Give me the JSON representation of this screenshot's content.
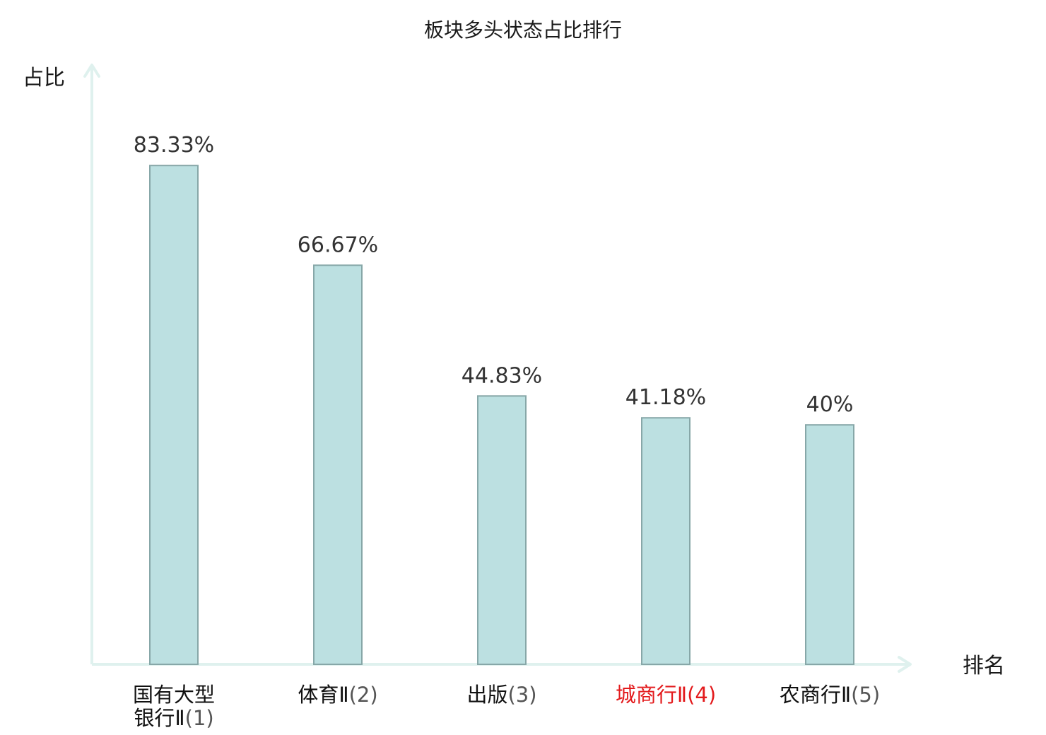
{
  "chart_data": {
    "type": "bar",
    "title": "板块多头状态占比排行",
    "xlabel": "排名",
    "ylabel": "占比",
    "categories": [
      {
        "name": "国有大型银行Ⅱ",
        "name_lines": [
          "国有大型",
          "银行Ⅱ"
        ],
        "rank": "(1)",
        "highlight": false
      },
      {
        "name": "体育Ⅱ",
        "name_lines": [
          "体育Ⅱ"
        ],
        "rank": "(2)",
        "highlight": false
      },
      {
        "name": "出版",
        "name_lines": [
          "出版"
        ],
        "rank": "(3)",
        "highlight": false
      },
      {
        "name": "城商行Ⅱ",
        "name_lines": [
          "城商行Ⅱ"
        ],
        "rank": "(4)",
        "highlight": true
      },
      {
        "name": "农商行Ⅱ",
        "name_lines": [
          "农商行Ⅱ"
        ],
        "rank": "(5)",
        "highlight": false
      }
    ],
    "values": [
      83.33,
      66.67,
      44.83,
      41.18,
      40
    ],
    "value_labels": [
      "83.33%",
      "66.67%",
      "44.83%",
      "41.18%",
      "40%"
    ],
    "ylim": [
      0,
      100
    ],
    "grid": false,
    "legend": "none",
    "colors": {
      "bar_fill": "#bce0e1",
      "bar_stroke": "#87a7a8",
      "axis": "#dff1ee",
      "highlight": "#e31a1c"
    }
  }
}
